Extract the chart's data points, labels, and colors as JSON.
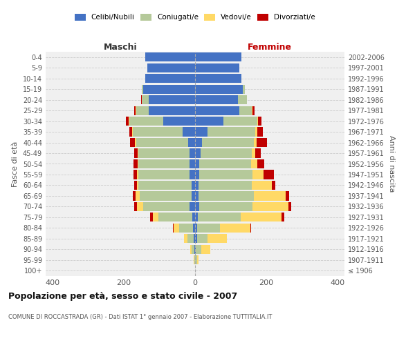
{
  "age_groups": [
    "100+",
    "95-99",
    "90-94",
    "85-89",
    "80-84",
    "75-79",
    "70-74",
    "65-69",
    "60-64",
    "55-59",
    "50-54",
    "45-49",
    "40-44",
    "35-39",
    "30-34",
    "25-29",
    "20-24",
    "15-19",
    "10-14",
    "5-9",
    "0-4"
  ],
  "birth_years": [
    "≤ 1906",
    "1907-1911",
    "1912-1916",
    "1917-1921",
    "1922-1926",
    "1927-1931",
    "1932-1936",
    "1937-1941",
    "1942-1946",
    "1947-1951",
    "1952-1956",
    "1957-1961",
    "1962-1966",
    "1967-1971",
    "1972-1976",
    "1977-1981",
    "1982-1986",
    "1987-1991",
    "1992-1996",
    "1997-2001",
    "2002-2006"
  ],
  "maschi": {
    "celibi": [
      0,
      0,
      2,
      3,
      5,
      8,
      15,
      10,
      10,
      15,
      15,
      15,
      20,
      35,
      90,
      130,
      130,
      145,
      140,
      135,
      140
    ],
    "coniugati": [
      0,
      2,
      8,
      18,
      40,
      95,
      130,
      145,
      150,
      145,
      145,
      145,
      145,
      140,
      95,
      35,
      20,
      5,
      0,
      0,
      0
    ],
    "vedovi": [
      0,
      2,
      4,
      10,
      15,
      15,
      18,
      12,
      3,
      3,
      2,
      2,
      5,
      2,
      2,
      2,
      0,
      0,
      0,
      0,
      0
    ],
    "divorziati": [
      0,
      0,
      0,
      0,
      2,
      8,
      8,
      8,
      8,
      10,
      12,
      10,
      12,
      8,
      8,
      5,
      2,
      0,
      0,
      0,
      0
    ]
  },
  "femmine": {
    "nubili": [
      0,
      0,
      2,
      5,
      5,
      8,
      12,
      10,
      10,
      12,
      12,
      15,
      20,
      35,
      80,
      125,
      120,
      135,
      130,
      125,
      130
    ],
    "coniugate": [
      0,
      5,
      15,
      30,
      65,
      120,
      150,
      155,
      150,
      150,
      145,
      145,
      145,
      135,
      95,
      35,
      25,
      5,
      0,
      0,
      0
    ],
    "vedove": [
      0,
      5,
      25,
      55,
      85,
      115,
      100,
      90,
      55,
      30,
      18,
      10,
      8,
      5,
      2,
      2,
      0,
      0,
      0,
      0,
      0
    ],
    "divorziate": [
      0,
      0,
      0,
      0,
      2,
      8,
      8,
      10,
      10,
      30,
      20,
      15,
      30,
      15,
      10,
      5,
      0,
      0,
      0,
      0,
      0
    ]
  },
  "colors": {
    "celibi": "#4472c4",
    "coniugati": "#b5c99a",
    "vedovi": "#ffd966",
    "divorziati": "#c00000"
  },
  "legend_labels": [
    "Celibi/Nubili",
    "Coniugati/e",
    "Vedovi/e",
    "Divorziati/e"
  ],
  "title": "Popolazione per età, sesso e stato civile - 2007",
  "subtitle": "COMUNE DI ROCCASTRADA (GR) - Dati ISTAT 1° gennaio 2007 - Elaborazione TUTTITALIA.IT",
  "xlabel_left": "Maschi",
  "xlabel_right": "Femmine",
  "ylabel_left": "Fasce di età",
  "ylabel_right": "Anni di nascita",
  "xlim": 420,
  "background_color": "#ffffff",
  "grid_color": "#cccccc",
  "axis_bg": "#f0f0f0"
}
